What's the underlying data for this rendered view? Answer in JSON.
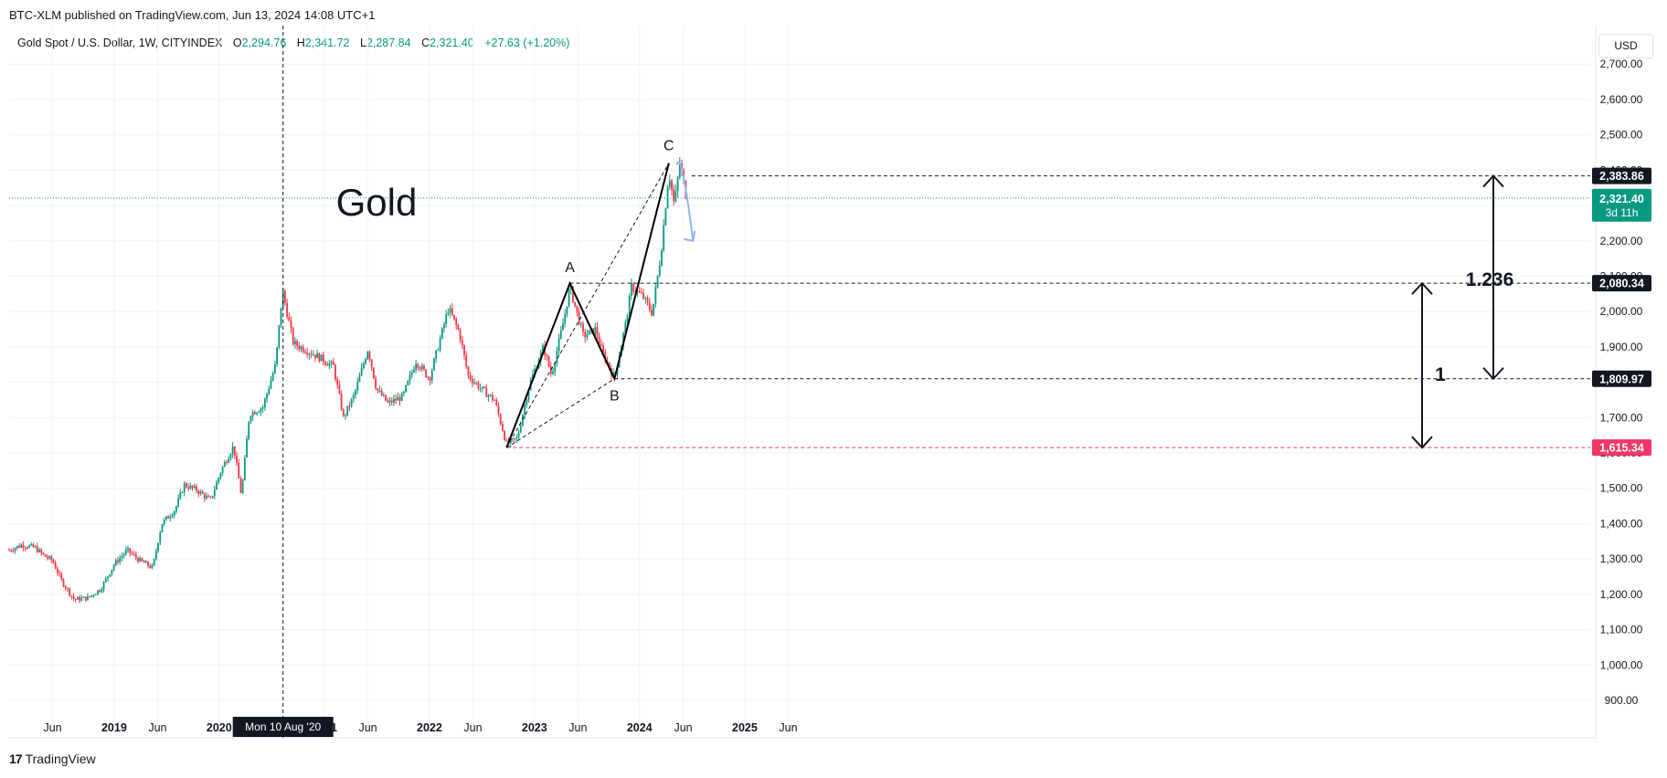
{
  "header": {
    "published": "BTC-XLM published on TradingView.com, Jun 13, 2024 14:08 UTC+1",
    "symbol": "Gold Spot / U.S. Dollar, 1W, CITYINDEX",
    "ohlc": [
      {
        "key": "O",
        "value": "2,294.76"
      },
      {
        "key": "H",
        "value": "2,341.72"
      },
      {
        "key": "L",
        "value": "2,287.84"
      },
      {
        "key": "C",
        "value": "2,321.40"
      }
    ],
    "change": "+27.63 (+1.20%)",
    "currency_button": "USD"
  },
  "footer": {
    "brand": "TradingView",
    "brand_logo": "17"
  },
  "colors": {
    "up": "#089981",
    "down": "#f23645",
    "grid": "#f0f3fa",
    "pattern": "#000000",
    "projection": "#90b7f2",
    "low_label": "#f23667"
  },
  "chart_data": {
    "type": "candlestick",
    "title": "Gold",
    "ylim": [
      850,
      2770
    ],
    "y_ticks": [
      "900.00",
      "1,000.00",
      "1,100.00",
      "1,200.00",
      "1,300.00",
      "1,400.00",
      "1,500.00",
      "1,600.00",
      "1,700.00",
      "1,800.00",
      "1,900.00",
      "2,000.00",
      "2,100.00",
      "2,200.00",
      "2,300.00",
      "2,400.00",
      "2,500.00",
      "2,600.00",
      "2,700.00"
    ],
    "x_ticks": [
      "Jun",
      "2019",
      "Jun",
      "2020",
      "2021",
      "Jun",
      "2022",
      "Jun",
      "2023",
      "Jun",
      "2024",
      "Jun",
      "2025",
      "Jun"
    ],
    "x_tick_dates": [
      "2018-06-01",
      "2019-01-01",
      "2019-06-01",
      "2020-01-01",
      "2021-01-01",
      "2021-06-01",
      "2022-01-01",
      "2022-06-01",
      "2023-01-01",
      "2023-06-01",
      "2024-01-01",
      "2024-06-01",
      "2025-01-01",
      "2025-06-01"
    ],
    "crosshair": {
      "date": "2020-08-10",
      "label": "Mon 10 Aug '20"
    },
    "price_path": [
      [
        "2018-01-01",
        1325
      ],
      [
        "2018-02-15",
        1340
      ],
      [
        "2018-04-01",
        1332
      ],
      [
        "2018-05-01",
        1310
      ],
      [
        "2018-06-01",
        1295
      ],
      [
        "2018-07-01",
        1240
      ],
      [
        "2018-08-15",
        1185
      ],
      [
        "2018-10-01",
        1190
      ],
      [
        "2018-11-15",
        1215
      ],
      [
        "2019-01-01",
        1285
      ],
      [
        "2019-02-15",
        1325
      ],
      [
        "2019-04-01",
        1295
      ],
      [
        "2019-05-15",
        1275
      ],
      [
        "2019-06-15",
        1400
      ],
      [
        "2019-08-01",
        1440
      ],
      [
        "2019-09-01",
        1510
      ],
      [
        "2019-10-15",
        1495
      ],
      [
        "2019-12-01",
        1465
      ],
      [
        "2020-01-10",
        1555
      ],
      [
        "2020-02-20",
        1620
      ],
      [
        "2020-03-18",
        1480
      ],
      [
        "2020-04-15",
        1710
      ],
      [
        "2020-06-01",
        1730
      ],
      [
        "2020-07-15",
        1850
      ],
      [
        "2020-08-08",
        2060
      ],
      [
        "2020-09-15",
        1910
      ],
      [
        "2020-11-01",
        1890
      ],
      [
        "2020-12-15",
        1870
      ],
      [
        "2021-02-01",
        1845
      ],
      [
        "2021-03-08",
        1700
      ],
      [
        "2021-04-15",
        1765
      ],
      [
        "2021-06-01",
        1895
      ],
      [
        "2021-07-01",
        1780
      ],
      [
        "2021-08-10",
        1740
      ],
      [
        "2021-10-01",
        1760
      ],
      [
        "2021-11-15",
        1860
      ],
      [
        "2022-01-01",
        1810
      ],
      [
        "2022-03-08",
        2010
      ],
      [
        "2022-04-15",
        1940
      ],
      [
        "2022-05-15",
        1820
      ],
      [
        "2022-07-01",
        1780
      ],
      [
        "2022-08-15",
        1750
      ],
      [
        "2022-09-26",
        1625
      ],
      [
        "2022-11-01",
        1640
      ],
      [
        "2022-12-15",
        1795
      ],
      [
        "2023-02-01",
        1900
      ],
      [
        "2023-03-01",
        1820
      ],
      [
        "2023-04-14",
        1980
      ],
      [
        "2023-05-04",
        2070
      ],
      [
        "2023-06-20",
        1930
      ],
      [
        "2023-08-01",
        1950
      ],
      [
        "2023-08-22",
        1890
      ],
      [
        "2023-10-06",
        1812
      ],
      [
        "2023-11-15",
        1970
      ],
      [
        "2023-12-04",
        2070
      ],
      [
        "2024-01-15",
        2040
      ],
      [
        "2024-02-14",
        1995
      ],
      [
        "2024-03-15",
        2160
      ],
      [
        "2024-04-12",
        2395
      ],
      [
        "2024-05-01",
        2300
      ],
      [
        "2024-05-20",
        2420
      ],
      [
        "2024-06-13",
        2321
      ]
    ],
    "pattern": {
      "points": [
        {
          "label": "",
          "date": "2022-09-26",
          "price": 1615
        },
        {
          "label": "A",
          "date": "2023-05-04",
          "price": 2080
        },
        {
          "label": "B",
          "date": "2023-10-06",
          "price": 1810
        },
        {
          "label": "C",
          "date": "2024-04-12",
          "price": 2420
        }
      ],
      "ratios": [
        {
          "label": "1",
          "from": 1615,
          "to": 2080
        },
        {
          "label": "1.236",
          "from": 1810,
          "to": 2384
        }
      ]
    },
    "levels": [
      {
        "price": 2383.86,
        "label": "2,383.86",
        "style": "dashed-black"
      },
      {
        "price": 2080.34,
        "label": "2,080.34",
        "style": "dashed-black"
      },
      {
        "price": 1809.97,
        "label": "1,809.97",
        "style": "dashed-black"
      },
      {
        "price": 1615.34,
        "label": "1,615.34",
        "style": "dashed-pink"
      }
    ],
    "last_price": {
      "price": 2321.4,
      "label": "2,321.40",
      "countdown": "3d 11h"
    },
    "projection": {
      "from": [
        "2024-05-10",
        2415
      ],
      "peak": [
        "2024-05-25",
        2420
      ],
      "to": [
        "2024-07-05",
        2200
      ]
    }
  }
}
